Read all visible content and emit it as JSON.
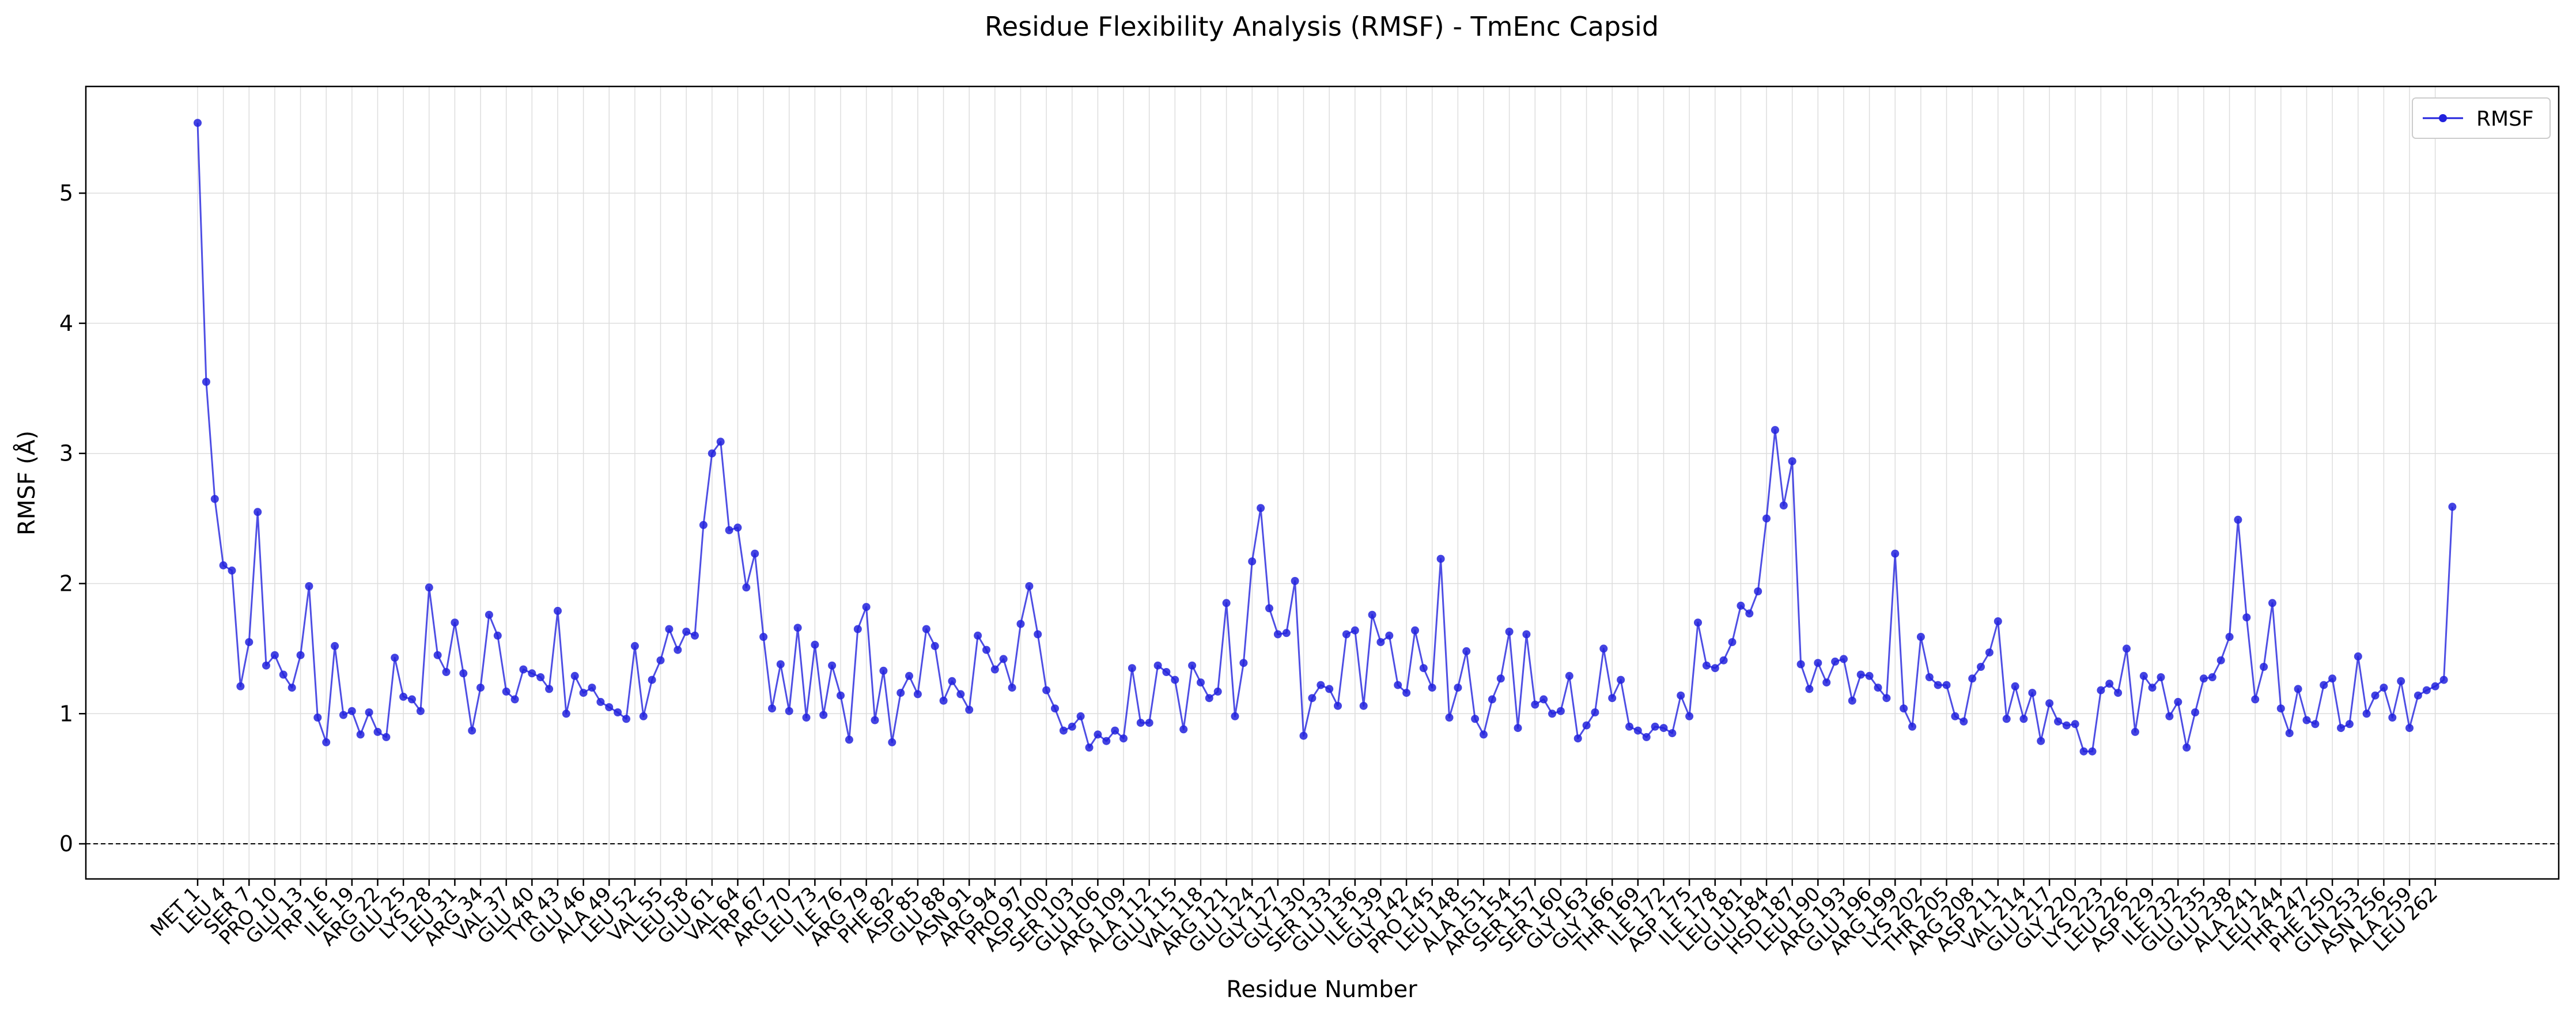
{
  "chart_data": {
    "type": "line",
    "title": "Residue Flexibility Analysis (RMSF) - TmEnc Capsid",
    "xlabel": "Residue Number",
    "ylabel": "RMSF (Å)",
    "ylim": [
      -0.27,
      5.82
    ],
    "yticks": [
      0,
      1,
      2,
      3,
      4,
      5
    ],
    "grid": true,
    "legend_position": "top-right",
    "reference_line_y": 0,
    "x_start": 1,
    "x_end": 264,
    "xtick_labels": [
      "MET 1",
      "LEU 4",
      "SER 7",
      "PRO 10",
      "GLU 13",
      "TRP 16",
      "ILE 19",
      "ARG 22",
      "GLU 25",
      "LYS 28",
      "LEU 31",
      "ARG 34",
      "VAL 37",
      "GLU 40",
      "TYR 43",
      "GLU 46",
      "ALA 49",
      "LEU 52",
      "VAL 55",
      "LEU 58",
      "GLU 61",
      "VAL 64",
      "TRP 67",
      "ARG 70",
      "LEU 73",
      "ILE 76",
      "ARG 79",
      "PHE 82",
      "ASP 85",
      "GLU 88",
      "ASN 91",
      "ARG 94",
      "PRO 97",
      "ASP 100",
      "SER 103",
      "GLU 106",
      "ARG 109",
      "ALA 112",
      "GLU 115",
      "VAL 118",
      "ARG 121",
      "GLU 124",
      "GLY 127",
      "GLY 130",
      "SER 133",
      "GLU 136",
      "ILE 139",
      "GLY 142",
      "PRO 145",
      "LEU 148",
      "ALA 151",
      "ARG 154",
      "SER 157",
      "SER 160",
      "GLY 163",
      "GLY 166",
      "THR 169",
      "ILE 172",
      "ASP 175",
      "ILE 178",
      "LEU 181",
      "GLU 184",
      "HSD 187",
      "LEU 190",
      "ARG 193",
      "GLU 196",
      "ARG 199",
      "LYS 202",
      "THR 205",
      "ARG 208",
      "ASP 211",
      "VAL 214",
      "GLU 217",
      "GLY 220",
      "LYS 223",
      "LEU 226",
      "ASP 229",
      "ILE 232",
      "GLU 235",
      "GLU 238",
      "ALA 241",
      "LEU 244",
      "THR 247",
      "PHE 250",
      "GLN 253",
      "ASN 256",
      "ALA 259",
      "LEU 262"
    ],
    "series": [
      {
        "name": "RMSF",
        "color": "#2222dd",
        "values": [
          5.54,
          3.55,
          2.65,
          2.14,
          2.1,
          1.21,
          1.55,
          2.55,
          1.37,
          1.45,
          1.3,
          1.2,
          1.45,
          1.98,
          0.97,
          0.78,
          1.52,
          0.99,
          1.02,
          0.84,
          1.01,
          0.86,
          0.82,
          1.43,
          1.13,
          1.11,
          1.02,
          1.97,
          1.45,
          1.32,
          1.7,
          1.31,
          0.87,
          1.2,
          1.76,
          1.6,
          1.17,
          1.11,
          1.34,
          1.31,
          1.28,
          1.19,
          1.79,
          1.0,
          1.29,
          1.16,
          1.2,
          1.09,
          1.05,
          1.01,
          0.96,
          1.52,
          0.98,
          1.26,
          1.41,
          1.65,
          1.49,
          1.63,
          1.6,
          2.45,
          3.0,
          3.09,
          2.41,
          2.43,
          1.97,
          2.23,
          1.59,
          1.04,
          1.38,
          1.02,
          1.66,
          0.97,
          1.53,
          0.99,
          1.37,
          1.14,
          0.8,
          1.65,
          1.82,
          0.95,
          1.33,
          0.78,
          1.16,
          1.29,
          1.15,
          1.65,
          1.52,
          1.1,
          1.25,
          1.15,
          1.03,
          1.6,
          1.49,
          1.34,
          1.42,
          1.2,
          1.69,
          1.98,
          1.61,
          1.18,
          1.04,
          0.87,
          0.9,
          0.98,
          0.74,
          0.84,
          0.79,
          0.87,
          0.81,
          1.35,
          0.93,
          0.93,
          1.37,
          1.32,
          1.26,
          0.88,
          1.37,
          1.24,
          1.12,
          1.17,
          1.85,
          0.98,
          1.39,
          2.17,
          2.58,
          1.81,
          1.61,
          1.62,
          2.02,
          0.83,
          1.12,
          1.22,
          1.19,
          1.06,
          1.61,
          1.64,
          1.06,
          1.76,
          1.55,
          1.6,
          1.22,
          1.16,
          1.64,
          1.35,
          1.2,
          2.19,
          0.97,
          1.2,
          1.48,
          0.96,
          0.84,
          1.11,
          1.27,
          1.63,
          0.89,
          1.61,
          1.07,
          1.11,
          1.0,
          1.02,
          1.29,
          0.81,
          0.91,
          1.01,
          1.5,
          1.12,
          1.26,
          0.9,
          0.87,
          0.82,
          0.9,
          0.89,
          0.85,
          1.14,
          0.98,
          1.7,
          1.37,
          1.35,
          1.41,
          1.55,
          1.83,
          1.77,
          1.94,
          2.5,
          3.18,
          2.6,
          2.94,
          1.38,
          1.19,
          1.39,
          1.24,
          1.4,
          1.42,
          1.1,
          1.3,
          1.29,
          1.2,
          1.12,
          2.23,
          1.04,
          0.9,
          1.59,
          1.28,
          1.22,
          1.22,
          0.98,
          0.94,
          1.27,
          1.36,
          1.47,
          1.71,
          0.96,
          1.21,
          0.96,
          1.16,
          0.79,
          1.08,
          0.94,
          0.91,
          0.92,
          0.71,
          0.71,
          1.18,
          1.23,
          1.16,
          1.5,
          0.86,
          1.29,
          1.2,
          1.28,
          0.98,
          1.09,
          0.74,
          1.01,
          1.27,
          1.28,
          1.41,
          1.59,
          2.49,
          1.74,
          1.11,
          1.36,
          1.85,
          1.04,
          0.85,
          1.19,
          0.95,
          0.92,
          1.22,
          1.27,
          0.89,
          0.92,
          1.44,
          1.0,
          1.14,
          1.2,
          0.97,
          1.25,
          0.89,
          1.14,
          1.18,
          1.21,
          1.26,
          2.59
        ]
      }
    ]
  }
}
